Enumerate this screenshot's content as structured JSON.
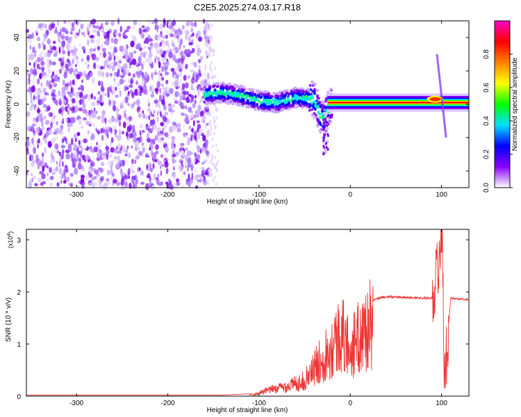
{
  "title": "C2E5.2025.274.03.17.R18",
  "chart_data": [
    {
      "type": "heatmap",
      "xlabel": "Height of straight line (km)",
      "ylabel": "Frequency (Hz)",
      "xlim": [
        -355,
        130
      ],
      "ylim": [
        -50,
        50
      ],
      "xticks": [
        -300,
        -200,
        -100,
        0,
        100
      ],
      "yticks": [
        -40,
        -20,
        0,
        20,
        40
      ],
      "colorbar": {
        "label": "Normalized spectral amplitude",
        "range": [
          0,
          1
        ],
        "ticks": [
          "0.0",
          "0.2",
          "0.4",
          "0.6",
          "0.8"
        ],
        "colors": [
          "#ffffff",
          "#8a00ff",
          "#0000ff",
          "#00e0ff",
          "#00ff00",
          "#ffff00",
          "#ff8000",
          "#ff0000",
          "#ff00c8"
        ]
      },
      "ridge": [
        {
          "x": -160,
          "y": 6
        },
        {
          "x": -140,
          "y": 7
        },
        {
          "x": -120,
          "y": 5
        },
        {
          "x": -100,
          "y": 2
        },
        {
          "x": -80,
          "y": 1
        },
        {
          "x": -60,
          "y": 4
        },
        {
          "x": -40,
          "y": 3
        },
        {
          "x": -30,
          "y": -10
        },
        {
          "x": -20,
          "y": 1
        },
        {
          "x": 0,
          "y": 1
        },
        {
          "x": 50,
          "y": 1
        },
        {
          "x": 90,
          "y": 3
        },
        {
          "x": 130,
          "y": 1
        }
      ],
      "streak": {
        "x_start": 95,
        "y_start": 30,
        "x_end": 105,
        "y_end": -20
      }
    },
    {
      "type": "line",
      "xlabel": "Height of straight line (km)",
      "ylabel": "SNR (10 * v/v)",
      "y_multiplier": "x10^4",
      "xlim": [
        -355,
        130
      ],
      "ylim": [
        0,
        3.2
      ],
      "xticks": [
        -300,
        -200,
        -100,
        0,
        100
      ],
      "yticks": [
        0,
        1,
        2,
        3
      ],
      "series": [
        {
          "color": "#ee3333",
          "points": [
            {
              "x": -355,
              "y": 0.02
            },
            {
              "x": -140,
              "y": 0.02
            },
            {
              "x": -105,
              "y": 0.05
            },
            {
              "x": -90,
              "y": 0.15
            },
            {
              "x": -70,
              "y": 0.25
            },
            {
              "x": -50,
              "y": 0.4
            },
            {
              "x": -40,
              "y": 0.7
            },
            {
              "x": -30,
              "y": 1.0
            },
            {
              "x": -20,
              "y": 1.3
            },
            {
              "x": -10,
              "y": 1.6
            },
            {
              "x": 0,
              "y": 1.2
            },
            {
              "x": 10,
              "y": 1.5
            },
            {
              "x": 20,
              "y": 1.8
            },
            {
              "x": 35,
              "y": 1.9
            },
            {
              "x": 50,
              "y": 1.9
            },
            {
              "x": 90,
              "y": 1.88
            },
            {
              "x": 97,
              "y": 2.6
            },
            {
              "x": 101,
              "y": 3.2
            },
            {
              "x": 103,
              "y": 0.2
            },
            {
              "x": 110,
              "y": 1.88
            },
            {
              "x": 130,
              "y": 1.85
            }
          ]
        }
      ]
    }
  ]
}
